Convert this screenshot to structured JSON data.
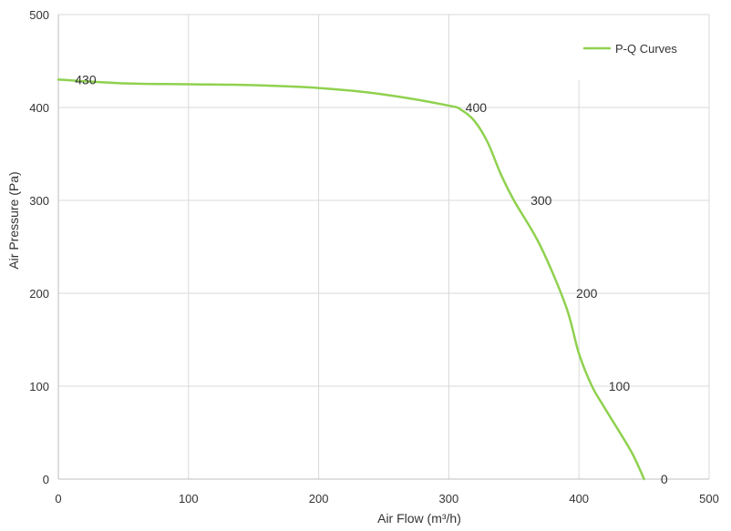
{
  "chart_data": {
    "type": "line",
    "title": "",
    "xlabel": "Air Flow  (m³/h)",
    "ylabel": "Air Pressure  (Pa)",
    "xlim": [
      0,
      500
    ],
    "ylim": [
      0,
      500
    ],
    "x_ticks": [
      0,
      100,
      200,
      300,
      400,
      500
    ],
    "y_ticks": [
      0,
      100,
      200,
      300,
      400,
      500
    ],
    "x_tick_labels": [
      "0",
      "100",
      "200",
      "300",
      "400",
      "500"
    ],
    "y_tick_labels": [
      "0",
      "100",
      "200",
      "300",
      "400",
      "500"
    ],
    "grid": true,
    "legend": {
      "placement": "top-right",
      "entries": [
        "P-Q Curves"
      ]
    },
    "series": [
      {
        "name": "P-Q Curves",
        "color": "#8fd14f",
        "x": [
          0,
          50,
          100,
          150,
          200,
          250,
          300,
          310,
          320,
          330,
          340,
          350,
          370,
          390,
          400,
          410,
          420,
          440,
          450
        ],
        "y": [
          430,
          426,
          425,
          424,
          421,
          414,
          402,
          397,
          385,
          362,
          328,
          300,
          252,
          186,
          135,
          100,
          76,
          30,
          0
        ]
      }
    ],
    "annotations": [
      {
        "text": "430",
        "x": 10,
        "y": 430
      },
      {
        "text": "400",
        "x": 310,
        "y": 400
      },
      {
        "text": "300",
        "x": 360,
        "y": 300
      },
      {
        "text": "200",
        "x": 395,
        "y": 200
      },
      {
        "text": "100",
        "x": 420,
        "y": 100
      },
      {
        "text": "0",
        "x": 460,
        "y": 0
      }
    ]
  }
}
